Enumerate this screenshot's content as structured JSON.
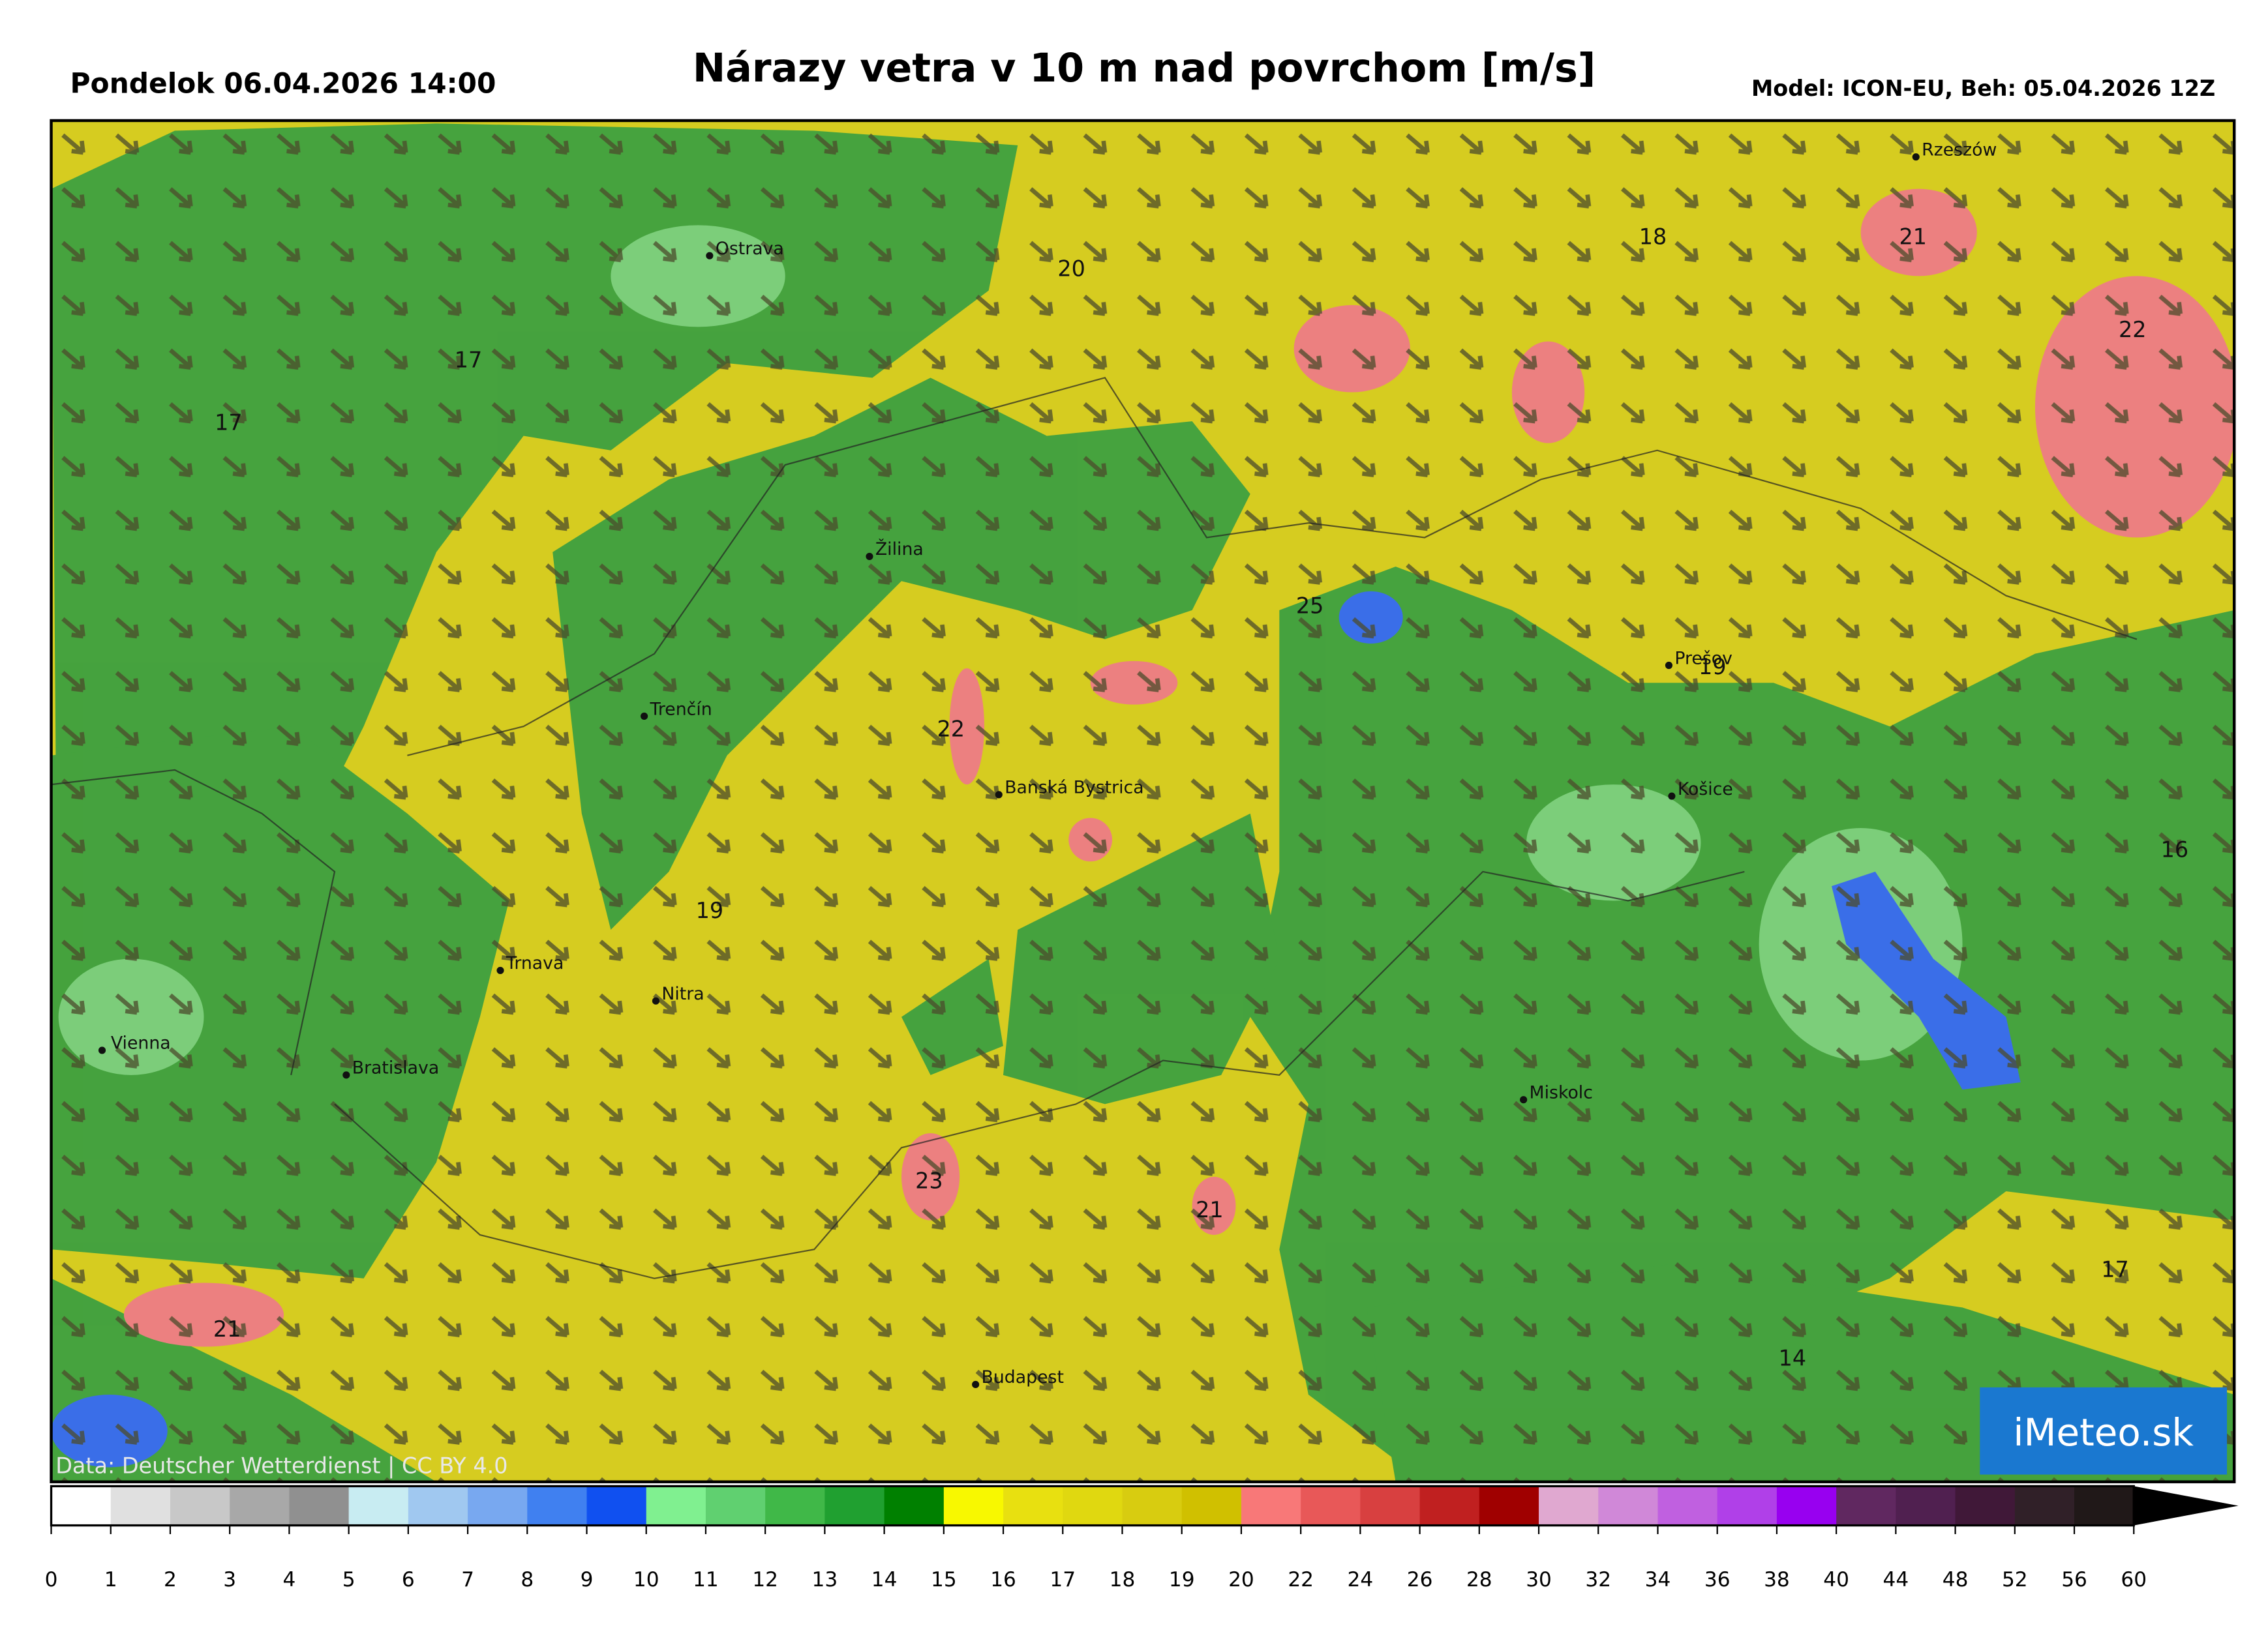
{
  "header": {
    "date": "Pondelok 06.04.2026 14:00",
    "title": "Nárazy vetra v 10 m nad povrchom [m/s]",
    "model": "Model: ICON-EU, Beh: 05.04.2026 12Z"
  },
  "map": {
    "cities": [
      "Rzeszów",
      "Ostrava",
      "Žilina",
      "Prešov",
      "Trenčín",
      "Košice",
      "Banská Bystrica",
      "Trnava",
      "Nitra",
      "Vienna",
      "Bratislava",
      "Miskolc",
      "Budapest"
    ],
    "values": [
      20,
      18,
      21,
      22,
      17,
      17,
      25,
      19,
      22,
      16,
      19,
      23,
      21,
      21,
      17,
      14
    ],
    "attribution": "Data: Deutscher Wetterdienst | CC BY 4.0",
    "logo": "iMeteo.sk"
  },
  "colorbar": {
    "ticks": [
      0,
      1,
      2,
      3,
      4,
      5,
      6,
      7,
      8,
      9,
      10,
      11,
      12,
      13,
      14,
      15,
      16,
      17,
      18,
      19,
      20,
      22,
      24,
      26,
      28,
      30,
      32,
      34,
      36,
      38,
      40,
      44,
      48,
      52,
      56,
      60
    ],
    "colors": [
      "#ffffff",
      "#e0e0e0",
      "#c8c8c8",
      "#a8a8a8",
      "#909090",
      "#c8ecf2",
      "#a0c8f0",
      "#78a8f0",
      "#4080f0",
      "#1050f0",
      "#80f090",
      "#60d070",
      "#40b848",
      "#20a030",
      "#008000",
      "#f8f800",
      "#e8e010",
      "#e0d810",
      "#d8cc10",
      "#d0c000",
      "#f87878",
      "#e85858",
      "#d84040",
      "#c02020",
      "#a00000",
      "#e0a8d0",
      "#d088d8",
      "#c060e0",
      "#b040e8",
      "#9800f0",
      "#602860",
      "#502050",
      "#401838",
      "#302028",
      "#201818"
    ],
    "extend_color": "#000000"
  }
}
